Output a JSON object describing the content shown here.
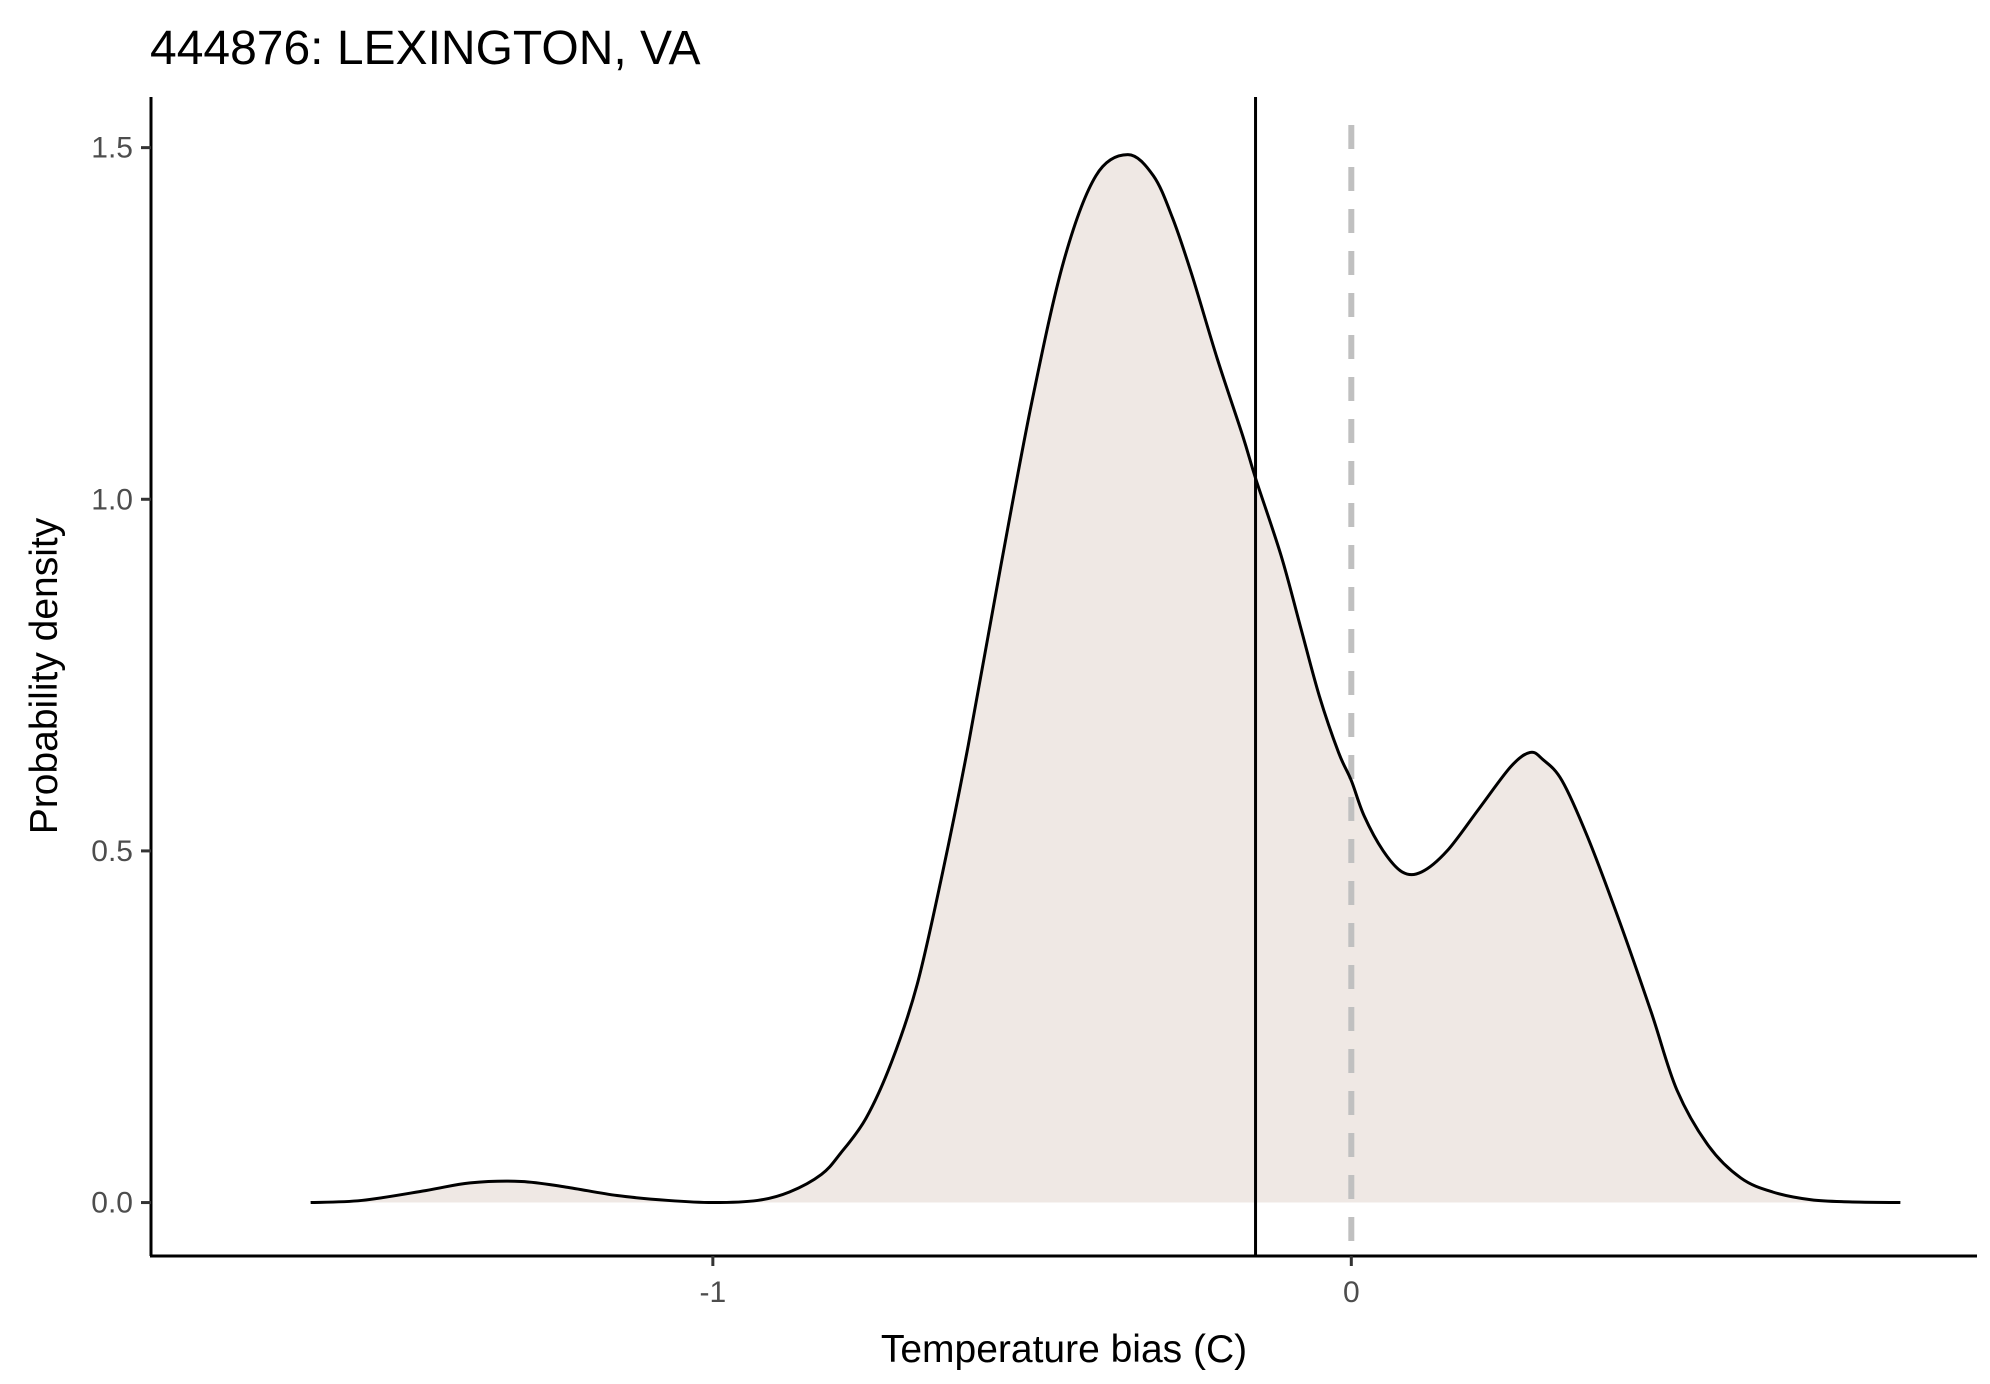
{
  "chart_data": {
    "type": "area",
    "title": "444876: LEXINGTON, VA",
    "xlabel": "Temperature bias (C)",
    "ylabel": "Probability density",
    "xlim": [
      -1.88,
      0.98
    ],
    "ylim": [
      -0.076,
      1.572
    ],
    "xticks": [
      -1,
      0
    ],
    "xtick_labels": [
      "-1",
      "0"
    ],
    "yticks": [
      0.0,
      0.5,
      1.0,
      1.5
    ],
    "ytick_labels": [
      "0.0",
      "0.5",
      "1.0",
      "1.5"
    ],
    "grid": false,
    "legend": "none",
    "series": [
      {
        "x": [
          -1.63,
          -1.55,
          -1.45,
          -1.38,
          -1.3,
          -1.23,
          -1.15,
          -1.07,
          -1.0,
          -0.93,
          -0.88,
          -0.83,
          -0.8,
          -0.76,
          -0.72,
          -0.68,
          -0.64,
          -0.6,
          -0.55,
          -0.5,
          -0.45,
          -0.4,
          -0.35,
          -0.31,
          -0.28,
          -0.25,
          -0.21,
          -0.17,
          -0.15,
          -0.11,
          -0.08,
          -0.05,
          -0.02,
          0.0,
          0.02,
          0.05,
          0.08,
          0.11,
          0.15,
          0.2,
          0.25,
          0.28,
          0.3,
          0.33,
          0.37,
          0.42,
          0.47,
          0.51,
          0.56,
          0.61,
          0.66,
          0.72,
          0.78,
          0.86
        ],
        "y": [
          0.0,
          0.003,
          0.017,
          0.028,
          0.03,
          0.022,
          0.01,
          0.003,
          0.0,
          0.003,
          0.015,
          0.04,
          0.07,
          0.12,
          0.2,
          0.31,
          0.47,
          0.65,
          0.9,
          1.14,
          1.34,
          1.46,
          1.49,
          1.46,
          1.4,
          1.32,
          1.2,
          1.09,
          1.03,
          0.92,
          0.82,
          0.72,
          0.64,
          0.6,
          0.55,
          0.5,
          0.47,
          0.47,
          0.5,
          0.56,
          0.62,
          0.64,
          0.63,
          0.6,
          0.52,
          0.4,
          0.27,
          0.16,
          0.08,
          0.035,
          0.015,
          0.004,
          0.001,
          0.0
        ]
      }
    ],
    "reference_lines": [
      {
        "axis": "x",
        "value": -0.15,
        "style": "solid"
      },
      {
        "axis": "x",
        "value": 0.0,
        "style": "dashed"
      }
    ],
    "fill_color": "#efe8e4",
    "line_color": "#000000",
    "dashed_line_color": "#c0c0c0"
  }
}
